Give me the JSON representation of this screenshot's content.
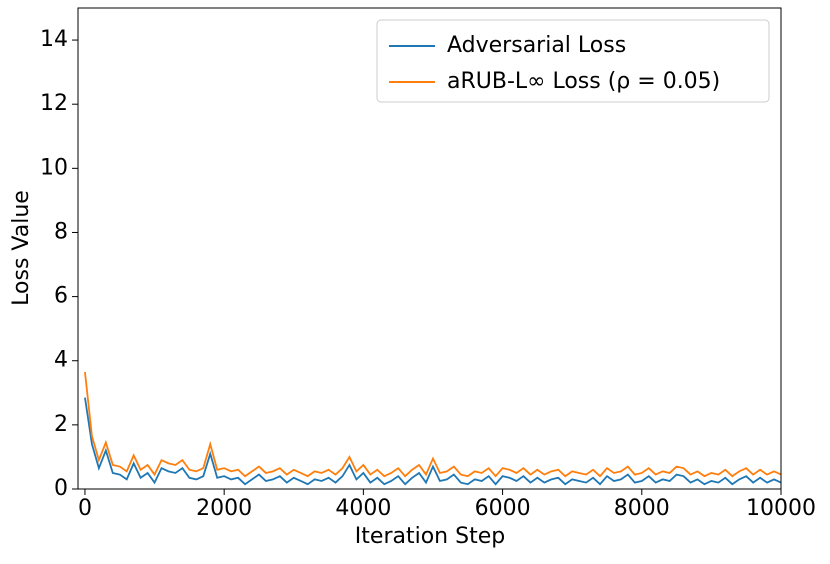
{
  "chart_data": {
    "type": "line",
    "xlabel": "Iteration Step",
    "ylabel": "Loss Value",
    "x": [
      0,
      100,
      200,
      300,
      400,
      500,
      600,
      700,
      800,
      900,
      1000,
      1100,
      1200,
      1300,
      1400,
      1500,
      1600,
      1700,
      1800,
      1900,
      2000,
      2100,
      2200,
      2300,
      2400,
      2500,
      2600,
      2700,
      2800,
      2900,
      3000,
      3100,
      3200,
      3300,
      3400,
      3500,
      3600,
      3700,
      3800,
      3900,
      4000,
      4100,
      4200,
      4300,
      4400,
      4500,
      4600,
      4700,
      4800,
      4900,
      5000,
      5100,
      5200,
      5300,
      5400,
      5500,
      5600,
      5700,
      5800,
      5900,
      6000,
      6100,
      6200,
      6300,
      6400,
      6500,
      6600,
      6700,
      6800,
      6900,
      7000,
      7100,
      7200,
      7300,
      7400,
      7500,
      7600,
      7700,
      7800,
      7900,
      8000,
      8100,
      8200,
      8300,
      8400,
      8500,
      8600,
      8700,
      8800,
      8900,
      9000,
      9100,
      9200,
      9300,
      9400,
      9500,
      9600,
      9700,
      9800,
      9900,
      10000
    ],
    "series": [
      {
        "name": "Adversarial Loss",
        "color": "#1f77b4",
        "values": [
          2.85,
          1.4,
          0.65,
          1.2,
          0.5,
          0.45,
          0.3,
          0.8,
          0.35,
          0.5,
          0.2,
          0.65,
          0.55,
          0.5,
          0.65,
          0.35,
          0.3,
          0.4,
          1.1,
          0.35,
          0.4,
          0.3,
          0.35,
          0.15,
          0.3,
          0.45,
          0.25,
          0.3,
          0.4,
          0.2,
          0.35,
          0.25,
          0.15,
          0.3,
          0.25,
          0.35,
          0.2,
          0.4,
          0.75,
          0.3,
          0.5,
          0.2,
          0.35,
          0.15,
          0.25,
          0.4,
          0.15,
          0.35,
          0.5,
          0.2,
          0.7,
          0.25,
          0.3,
          0.45,
          0.2,
          0.15,
          0.3,
          0.25,
          0.4,
          0.15,
          0.4,
          0.35,
          0.25,
          0.4,
          0.2,
          0.35,
          0.2,
          0.3,
          0.35,
          0.15,
          0.3,
          0.25,
          0.2,
          0.35,
          0.15,
          0.4,
          0.25,
          0.3,
          0.45,
          0.2,
          0.25,
          0.4,
          0.2,
          0.3,
          0.25,
          0.45,
          0.4,
          0.2,
          0.3,
          0.15,
          0.25,
          0.2,
          0.35,
          0.15,
          0.3,
          0.4,
          0.2,
          0.35,
          0.2,
          0.3,
          0.2
        ]
      },
      {
        "name": "aRUB-L∞ Loss (ρ = 0.05)",
        "color": "#ff7f0e",
        "values": [
          3.65,
          1.65,
          0.9,
          1.45,
          0.75,
          0.7,
          0.55,
          1.05,
          0.6,
          0.75,
          0.45,
          0.9,
          0.8,
          0.75,
          0.9,
          0.6,
          0.55,
          0.65,
          1.4,
          0.6,
          0.65,
          0.55,
          0.6,
          0.4,
          0.55,
          0.7,
          0.5,
          0.55,
          0.65,
          0.45,
          0.6,
          0.5,
          0.4,
          0.55,
          0.5,
          0.6,
          0.45,
          0.65,
          1.0,
          0.55,
          0.75,
          0.45,
          0.6,
          0.4,
          0.5,
          0.65,
          0.4,
          0.6,
          0.75,
          0.45,
          0.95,
          0.5,
          0.55,
          0.7,
          0.45,
          0.4,
          0.55,
          0.5,
          0.65,
          0.4,
          0.65,
          0.6,
          0.5,
          0.65,
          0.45,
          0.6,
          0.45,
          0.55,
          0.6,
          0.4,
          0.55,
          0.5,
          0.45,
          0.6,
          0.4,
          0.65,
          0.5,
          0.55,
          0.7,
          0.45,
          0.5,
          0.65,
          0.45,
          0.55,
          0.5,
          0.7,
          0.65,
          0.45,
          0.55,
          0.4,
          0.5,
          0.45,
          0.6,
          0.4,
          0.55,
          0.65,
          0.45,
          0.6,
          0.45,
          0.55,
          0.45
        ]
      }
    ],
    "xlim": [
      -100,
      10000
    ],
    "ylim": [
      0,
      15
    ],
    "xticks": [
      0,
      2000,
      4000,
      6000,
      8000,
      10000
    ],
    "yticks": [
      0,
      2,
      4,
      6,
      8,
      10,
      12,
      14
    ],
    "legend": "upper right",
    "grid": false
  }
}
